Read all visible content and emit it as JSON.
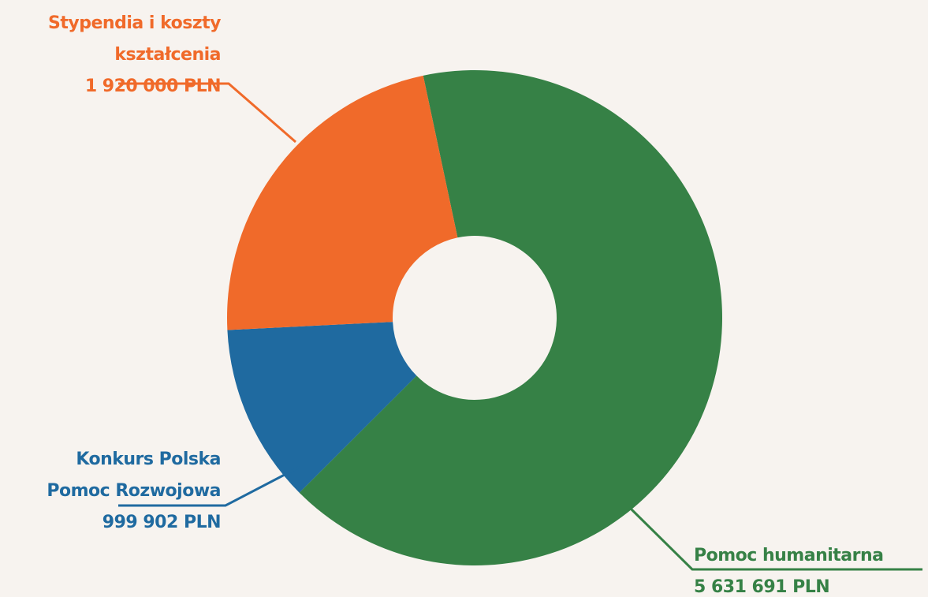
{
  "chart_data": {
    "type": "donut",
    "categories": [
      "Pomoc humanitarna",
      "Konkurs Polska Pomoc Rozwojowa",
      "Stypendia i koszty kształcenia"
    ],
    "values": [
      5631691,
      999902,
      1920000
    ],
    "value_labels": [
      "5 631 691 PLN",
      "999 902 PLN",
      "1 920 000 PLN"
    ],
    "colors": [
      "#368146",
      "#1f6aa0",
      "#f06a2a"
    ]
  }
}
